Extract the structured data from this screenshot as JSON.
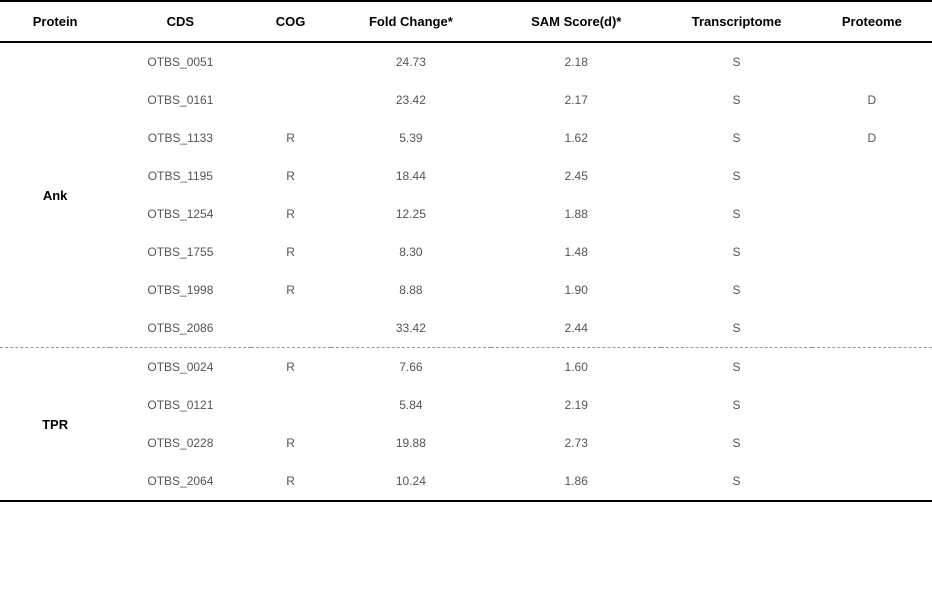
{
  "headers": {
    "protein": "Protein",
    "cds": "CDS",
    "cog": "COG",
    "fold_change": "Fold Change*",
    "sam_score": "SAM Score(d)*",
    "transcriptome": "Transcriptome",
    "proteome": "Proteome"
  },
  "groups": [
    {
      "protein": "Ank",
      "rows": [
        {
          "cds": "OTBS_0051",
          "cog": "",
          "fold": "24.73",
          "sam": "2.18",
          "trans": "S",
          "prot": ""
        },
        {
          "cds": "OTBS_0161",
          "cog": "",
          "fold": "23.42",
          "sam": "2.17",
          "trans": "S",
          "prot": "D"
        },
        {
          "cds": "OTBS_1133",
          "cog": "R",
          "fold": "5.39",
          "sam": "1.62",
          "trans": "S",
          "prot": "D"
        },
        {
          "cds": "OTBS_1195",
          "cog": "R",
          "fold": "18.44",
          "sam": "2.45",
          "trans": "S",
          "prot": ""
        },
        {
          "cds": "OTBS_1254",
          "cog": "R",
          "fold": "12.25",
          "sam": "1.88",
          "trans": "S",
          "prot": ""
        },
        {
          "cds": "OTBS_1755",
          "cog": "R",
          "fold": "8.30",
          "sam": "1.48",
          "trans": "S",
          "prot": ""
        },
        {
          "cds": "OTBS_1998",
          "cog": "R",
          "fold": "8.88",
          "sam": "1.90",
          "trans": "S",
          "prot": ""
        },
        {
          "cds": "OTBS_2086",
          "cog": "",
          "fold": "33.42",
          "sam": "2.44",
          "trans": "S",
          "prot": ""
        }
      ]
    },
    {
      "protein": "TPR",
      "rows": [
        {
          "cds": "OTBS_0024",
          "cog": "R",
          "fold": "7.66",
          "sam": "1.60",
          "trans": "S",
          "prot": ""
        },
        {
          "cds": "OTBS_0121",
          "cog": "",
          "fold": "5.84",
          "sam": "2.19",
          "trans": "S",
          "prot": ""
        },
        {
          "cds": "OTBS_0228",
          "cog": "R",
          "fold": "19.88",
          "sam": "2.73",
          "trans": "S",
          "prot": ""
        },
        {
          "cds": "OTBS_2064",
          "cog": "R",
          "fold": "10.24",
          "sam": "1.86",
          "trans": "S",
          "prot": ""
        }
      ]
    }
  ],
  "styling": {
    "font_family": "Arial, sans-serif",
    "header_fontsize": 13,
    "data_fontsize": 12,
    "header_color": "#000000",
    "data_color": "#555555",
    "border_color": "#000000",
    "dashed_border_color": "#999999",
    "background_color": "#ffffff",
    "border_thick": 2,
    "row_padding": 12
  }
}
